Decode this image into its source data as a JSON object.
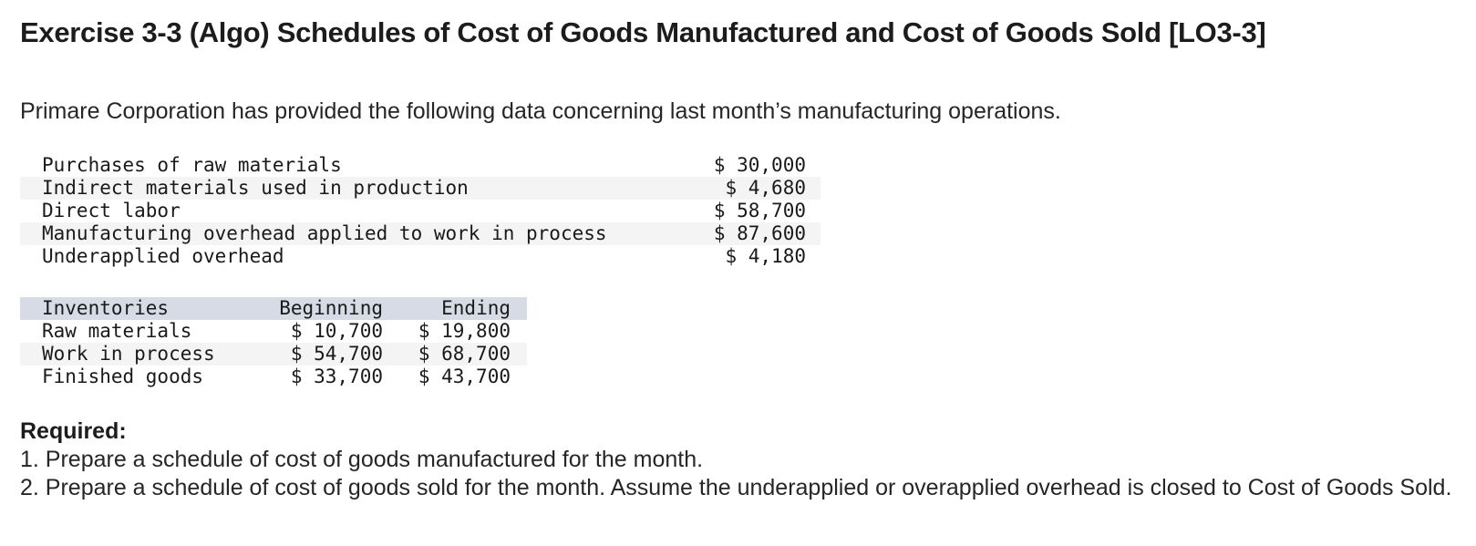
{
  "title": "Exercise 3-3 (Algo) Schedules of Cost of Goods Manufactured and Cost of Goods Sold [LO3-3]",
  "intro": "Primare Corporation has provided the following data concerning last month’s manufacturing operations.",
  "costs": [
    {
      "label": "Purchases of raw materials",
      "amount": "$ 30,000"
    },
    {
      "label": "Indirect materials used in production",
      "amount": "$ 4,680"
    },
    {
      "label": "Direct labor",
      "amount": "$ 58,700"
    },
    {
      "label": "Manufacturing overhead applied to work in process",
      "amount": "$ 87,600"
    },
    {
      "label": "Underapplied overhead",
      "amount": "$ 4,180"
    }
  ],
  "inventories": {
    "headers": [
      "Inventories",
      "Beginning",
      "Ending"
    ],
    "rows": [
      {
        "label": "Raw materials",
        "beginning": "$ 10,700",
        "ending": "$ 19,800"
      },
      {
        "label": "Work in process",
        "beginning": "$ 54,700",
        "ending": "$ 68,700"
      },
      {
        "label": "Finished goods",
        "beginning": "$ 33,700",
        "ending": "$ 43,700"
      }
    ]
  },
  "required": {
    "heading": "Required:",
    "items": [
      "1. Prepare a schedule of cost of goods manufactured for the month.",
      "2. Prepare a schedule of cost of goods sold for the month. Assume the underapplied or overapplied overhead is closed to Cost of Goods Sold."
    ]
  }
}
